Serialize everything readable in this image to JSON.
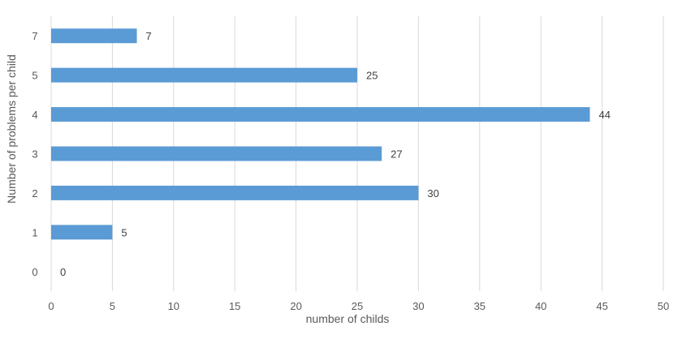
{
  "chart_data": {
    "type": "bar",
    "orientation": "horizontal",
    "categories": [
      "0",
      "1",
      "2",
      "3",
      "4",
      "5",
      "7"
    ],
    "values": [
      0,
      5,
      30,
      27,
      44,
      25,
      7
    ],
    "xlabel": "number of childs",
    "ylabel": "Number of problems per child",
    "xlim": [
      0,
      50
    ],
    "xticks": [
      0,
      5,
      10,
      15,
      20,
      25,
      30,
      35,
      40,
      45,
      50
    ],
    "grid": "vertical",
    "legend": "none",
    "data_labels": true,
    "bar_color": "#5B9BD5",
    "grid_color": "#D9D9D9"
  }
}
